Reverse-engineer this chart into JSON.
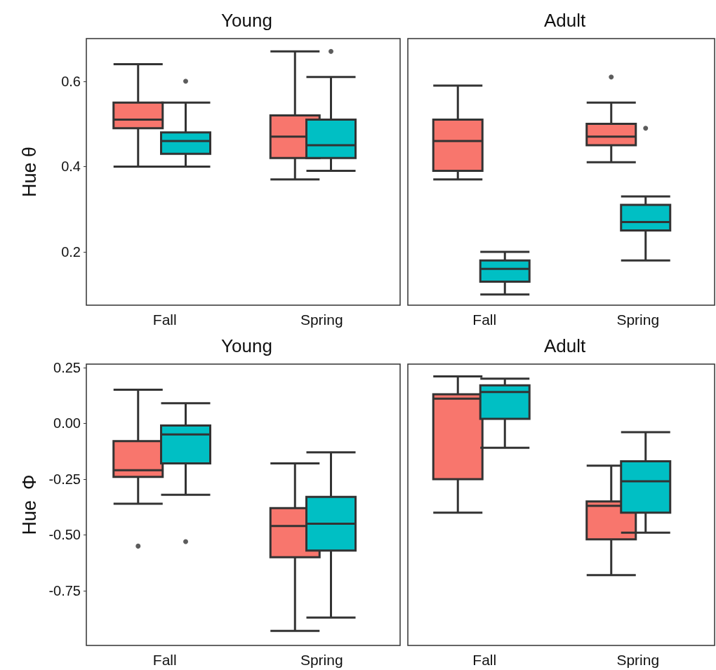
{
  "chart_data": [
    {
      "type": "box",
      "title": "Young",
      "ylabel": "Hue θ",
      "categories": [
        "Fall",
        "Spring"
      ],
      "ylim": [
        0.075,
        0.7
      ],
      "yticks": [
        0.2,
        0.4,
        0.6
      ],
      "series": [
        {
          "color": "#f8766d",
          "boxes": [
            {
              "low": 0.4,
              "q1": 0.49,
              "median": 0.51,
              "q3": 0.55,
              "high": 0.64
            },
            {
              "low": 0.37,
              "q1": 0.42,
              "median": 0.47,
              "q3": 0.52,
              "high": 0.67
            }
          ]
        },
        {
          "color": "#00bfc4",
          "boxes": [
            {
              "low": 0.4,
              "q1": 0.43,
              "median": 0.46,
              "q3": 0.48,
              "high": 0.55,
              "outliers": [
                0.6
              ]
            },
            {
              "low": 0.39,
              "q1": 0.42,
              "median": 0.45,
              "q3": 0.51,
              "high": 0.61,
              "outliers": [
                0.67
              ]
            }
          ]
        }
      ]
    },
    {
      "type": "box",
      "title": "Adult",
      "categories": [
        "Fall",
        "Spring"
      ],
      "ylim": [
        0.075,
        0.7
      ],
      "tick_labels": "x",
      "series": [
        {
          "color": "#f8766d",
          "boxes": [
            {
              "low": 0.37,
              "q1": 0.39,
              "median": 0.46,
              "q3": 0.51,
              "high": 0.59
            },
            {
              "low": 0.41,
              "q1": 0.45,
              "median": 0.47,
              "q3": 0.5,
              "high": 0.55,
              "outliers": [
                0.61
              ]
            }
          ]
        },
        {
          "color": "#00bfc4",
          "boxes": [
            {
              "low": 0.1,
              "q1": 0.13,
              "median": 0.16,
              "q3": 0.18,
              "high": 0.2
            },
            {
              "low": 0.18,
              "q1": 0.25,
              "median": 0.27,
              "q3": 0.31,
              "high": 0.33,
              "outliers": [
                0.49
              ]
            }
          ]
        }
      ]
    },
    {
      "type": "box",
      "title": "Young",
      "ylabel": "Hue  Φ",
      "categories": [
        "Fall",
        "Spring"
      ],
      "ylim": [
        -0.995,
        0.265
      ],
      "yticks": [
        0.25,
        {
          "value": 0,
          "label": "0.00"
        },
        -0.25,
        {
          "value": -0.5,
          "label": "-0.50"
        },
        -0.75
      ],
      "series": [
        {
          "color": "#f8766d",
          "boxes": [
            {
              "low": -0.36,
              "q1": -0.24,
              "median": -0.21,
              "q3": -0.08,
              "high": 0.15,
              "outliers": [
                -0.55
              ]
            },
            {
              "low": -0.93,
              "q1": -0.6,
              "median": -0.46,
              "q3": -0.38,
              "high": -0.18
            }
          ]
        },
        {
          "color": "#00bfc4",
          "boxes": [
            {
              "low": -0.32,
              "q1": -0.18,
              "median": -0.05,
              "q3": -0.01,
              "high": 0.09,
              "outliers": [
                -0.53
              ]
            },
            {
              "low": -0.87,
              "q1": -0.57,
              "median": -0.45,
              "q3": -0.33,
              "high": -0.13
            }
          ]
        }
      ]
    },
    {
      "type": "box",
      "title": "Adult",
      "categories": [
        "Fall",
        "Spring"
      ],
      "ylim": [
        -0.995,
        0.265
      ],
      "tick_labels": "x",
      "series": [
        {
          "color": "#f8766d",
          "boxes": [
            {
              "low": -0.4,
              "q1": -0.25,
              "median": 0.11,
              "q3": 0.13,
              "high": 0.21
            },
            {
              "low": -0.68,
              "q1": -0.52,
              "median": -0.37,
              "q3": -0.35,
              "high": -0.19
            }
          ]
        },
        {
          "color": "#00bfc4",
          "boxes": [
            {
              "low": -0.11,
              "q1": 0.02,
              "median": 0.14,
              "q3": 0.17,
              "high": 0.2
            },
            {
              "low": -0.49,
              "q1": -0.4,
              "median": -0.26,
              "q3": -0.17,
              "high": -0.04
            }
          ]
        }
      ]
    }
  ]
}
